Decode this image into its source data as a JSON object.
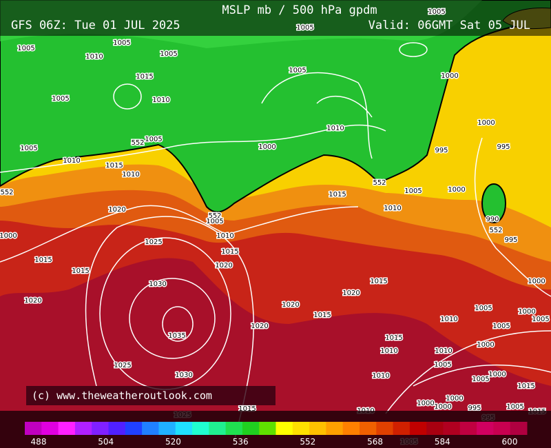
{
  "header": {
    "title": "MSLP mb / 500 hPa gpdm",
    "run": "GFS 06Z: Tue 01 JUL 2025",
    "valid": "Valid: 06GMT Sat 05 JUL"
  },
  "credit": "(c) www.theweatheroutlook.com",
  "colorbar": {
    "ticks": [
      488,
      504,
      520,
      536,
      552,
      568,
      584,
      600
    ],
    "colors": [
      "#c000c0",
      "#e000e0",
      "#ff20ff",
      "#b020ff",
      "#8020ff",
      "#5020ff",
      "#2040ff",
      "#2080ff",
      "#20b0ff",
      "#20e0ff",
      "#20ffd0",
      "#20f090",
      "#20e050",
      "#20d020",
      "#60e000",
      "#ffff00",
      "#ffe000",
      "#ffc000",
      "#ffa000",
      "#ff8000",
      "#f06000",
      "#e04000",
      "#d02000",
      "#c00000",
      "#a80010",
      "#b00020",
      "#c00040",
      "#d00060",
      "#c80050",
      "#b00040"
    ]
  },
  "contour_labels": [
    "552",
    "552",
    "552",
    "552",
    "552"
  ],
  "isobar_labels": [
    "1005",
    "1005",
    "1010",
    "1005",
    "1015",
    "1010",
    "1005",
    "1005",
    "1005",
    "1005",
    "1000",
    "1010",
    "1000",
    "1005",
    "1005",
    "1010",
    "1015",
    "1010",
    "1000",
    "995",
    "995",
    "1005",
    "1000",
    "1015",
    "1010",
    "990",
    "995",
    "1020",
    "1005",
    "1010",
    "1015",
    "1020",
    "1025",
    "1030",
    "1035",
    "1030",
    "1025",
    "1020",
    "1015",
    "1015",
    "1000",
    "1020",
    "1020",
    "1015",
    "1015",
    "1020",
    "1015",
    "1010",
    "1010",
    "1010",
    "1015",
    "1025",
    "1000",
    "1005",
    "1000",
    "1010",
    "1005",
    "1005",
    "1000",
    "1010",
    "1005",
    "1005",
    "1000",
    "1000",
    "1000",
    "1000",
    "995",
    "995",
    "1005",
    "1015",
    "1015",
    "1005"
  ]
}
